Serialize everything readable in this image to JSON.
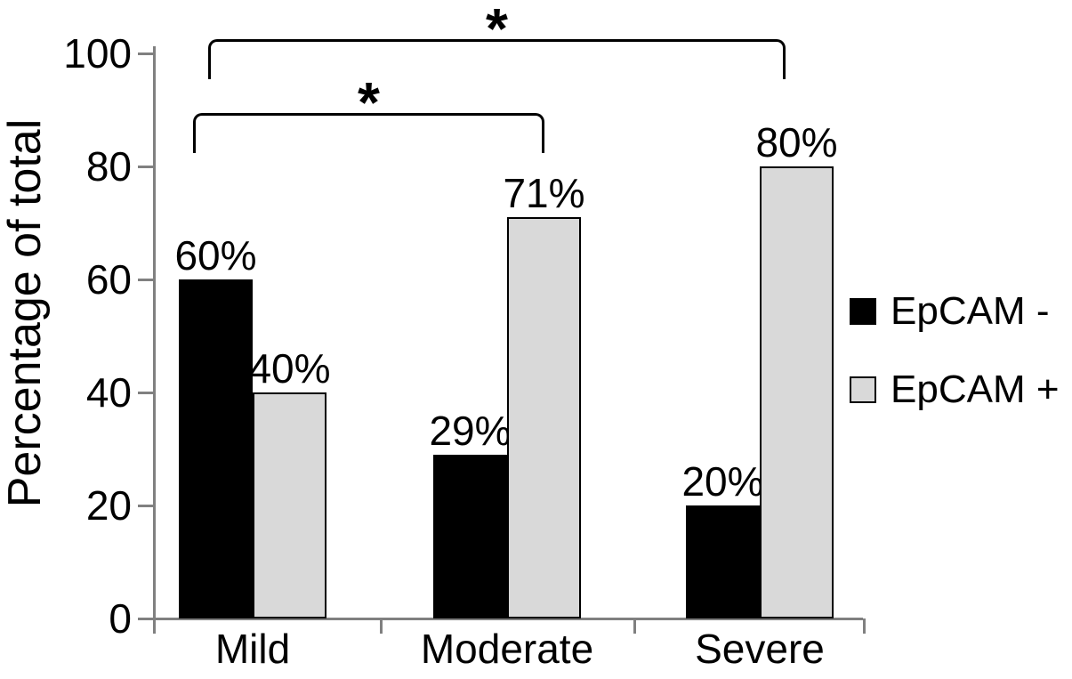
{
  "figure": {
    "background": "#ffffff",
    "text_color": "#000000",
    "axis_color": "#808080",
    "bar_border_color": "#000000"
  },
  "chart_data": {
    "type": "bar",
    "title": "",
    "xlabel": "",
    "ylabel": "Percentage of total",
    "ylim": [
      0,
      100
    ],
    "yticks": [
      "0",
      "20",
      "40",
      "60",
      "80",
      "100"
    ],
    "grid": false,
    "legend_position": "right",
    "categories": [
      "Mild",
      "Moderate",
      "Severe"
    ],
    "series": [
      {
        "name": "EpCAM -",
        "color": "#000000",
        "values": [
          60,
          29,
          20
        ],
        "labels": [
          "60%",
          "29%",
          "20%"
        ]
      },
      {
        "name": "EpCAM +",
        "color": "#d9d9d9",
        "values": [
          40,
          71,
          80
        ],
        "labels": [
          "40%",
          "71%",
          "80%"
        ]
      }
    ],
    "annotations": [
      {
        "type": "significance-bracket",
        "between": [
          "Mild",
          "Moderate"
        ],
        "label": "*"
      },
      {
        "type": "significance-bracket",
        "between": [
          "Mild",
          "Severe"
        ],
        "label": "*"
      }
    ]
  }
}
